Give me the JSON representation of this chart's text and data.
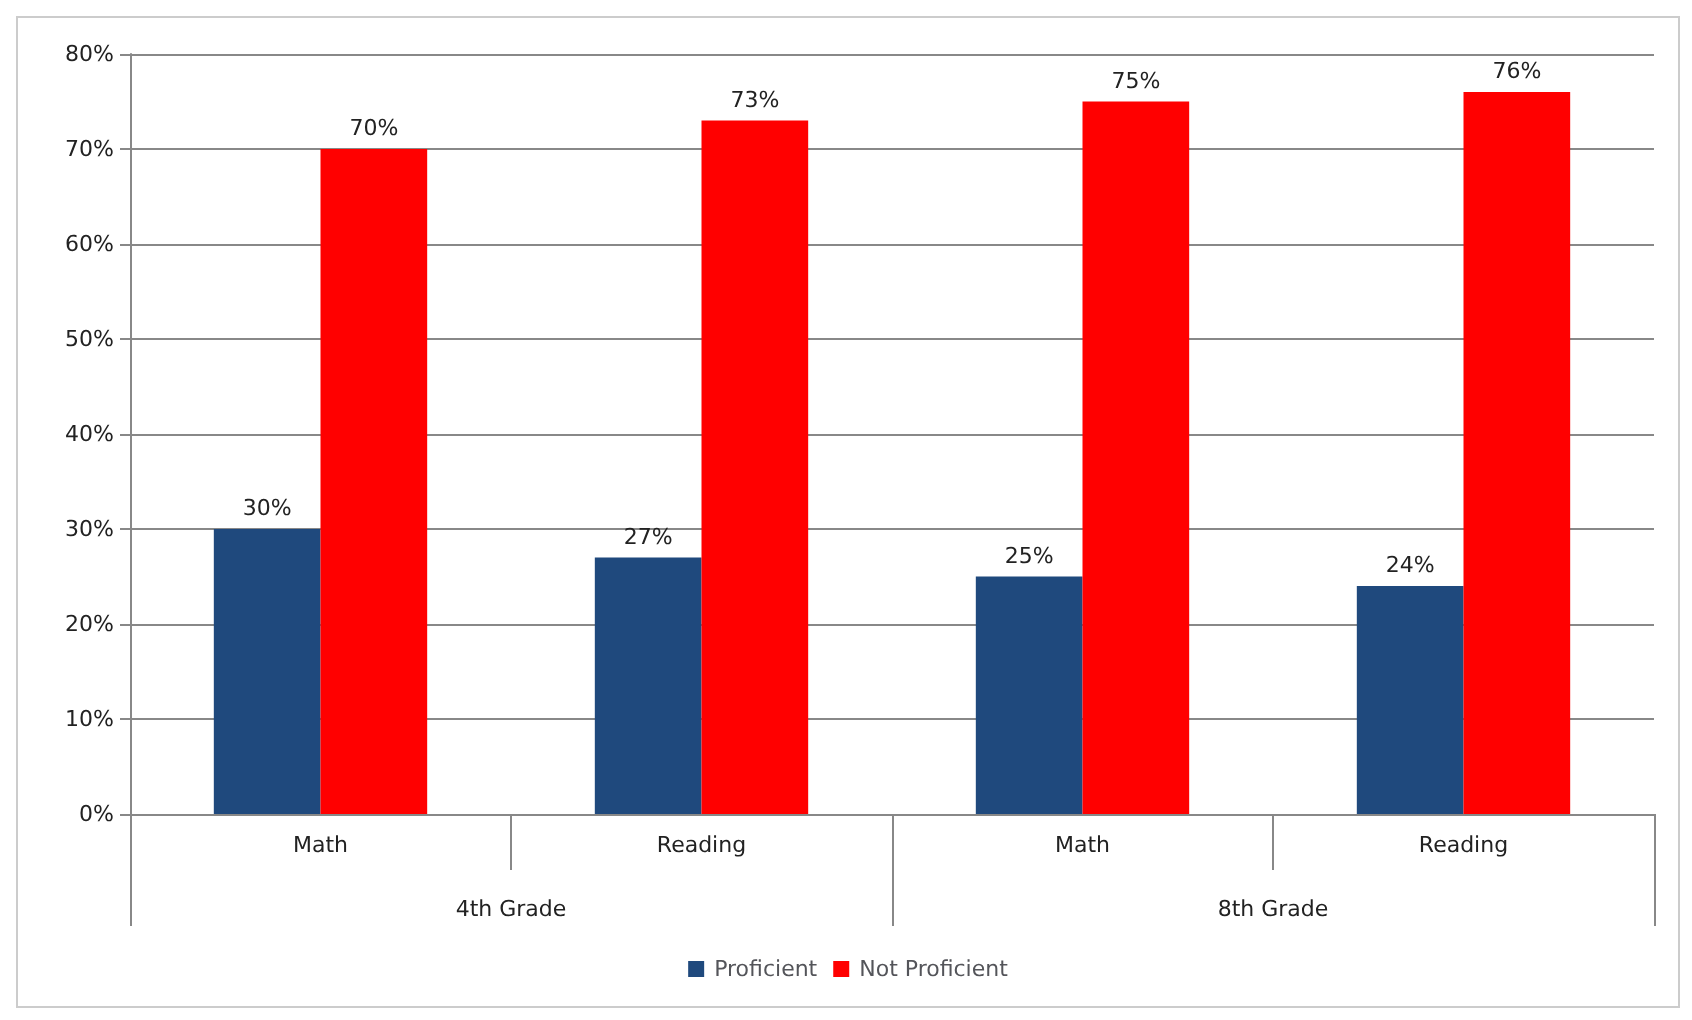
{
  "chart_data": {
    "type": "bar",
    "categories": [
      "Math",
      "Reading",
      "Math",
      "Reading"
    ],
    "annotations": [
      "4th Grade",
      "8th Grade"
    ],
    "series": [
      {
        "name": "Proficient",
        "color": "#1f497d",
        "values": [
          30,
          27,
          25,
          24
        ],
        "value_labels": [
          "30%",
          "27%",
          "25%",
          "24%"
        ]
      },
      {
        "name": "Not Proficient",
        "color": "#ff0000",
        "values": [
          70,
          73,
          75,
          76
        ],
        "value_labels": [
          "70%",
          "73%",
          "75%",
          "76%"
        ]
      }
    ],
    "ylim": [
      0,
      80
    ],
    "yticks": [
      {
        "value": 0,
        "label": "0%"
      },
      {
        "value": 10,
        "label": "10%"
      },
      {
        "value": 20,
        "label": "20%"
      },
      {
        "value": 30,
        "label": "30%"
      },
      {
        "value": 40,
        "label": "40%"
      },
      {
        "value": 50,
        "label": "50%"
      },
      {
        "value": 60,
        "label": "60%"
      },
      {
        "value": 70,
        "label": "70%"
      },
      {
        "value": 80,
        "label": "80%"
      }
    ],
    "grid": true,
    "legend": "bottom"
  }
}
